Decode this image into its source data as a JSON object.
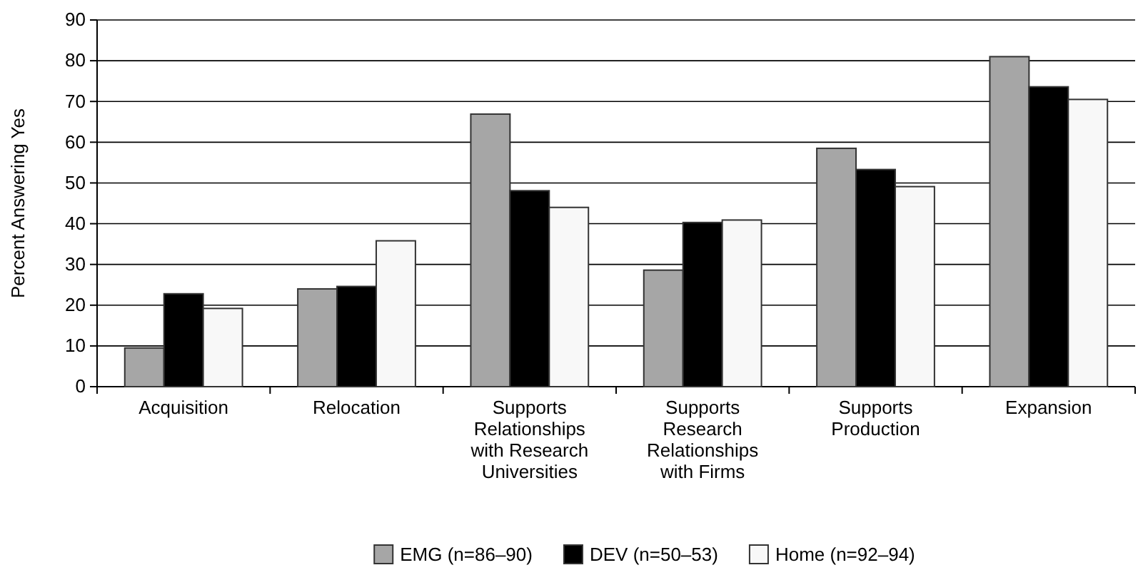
{
  "chart_data": {
    "type": "bar",
    "ylabel": "Percent Answering Yes",
    "categories": [
      "Acquisition",
      "Relocation",
      "Supports Relationships with Research Universities",
      "Supports Research Relationships with Firms",
      "Supports Production",
      "Expansion"
    ],
    "series": [
      {
        "name": "EMG (n=86–90)",
        "color": "#a6a6a6",
        "values": [
          9.5,
          24,
          66.9,
          28.6,
          58.5,
          81
        ]
      },
      {
        "name": "DEV (n=50–53)",
        "color": "#000000",
        "values": [
          22.8,
          24.6,
          48.1,
          40.3,
          53.3,
          73.6
        ]
      },
      {
        "name": "Home (n=92–94)",
        "color": "#f8f8f8",
        "values": [
          19.2,
          35.8,
          44,
          40.9,
          49.1,
          70.5
        ]
      }
    ],
    "ylim": [
      0,
      90
    ],
    "yticks": [
      0,
      10,
      20,
      30,
      40,
      50,
      60,
      70,
      80,
      90
    ],
    "grid": "y",
    "legend": "bottom"
  }
}
